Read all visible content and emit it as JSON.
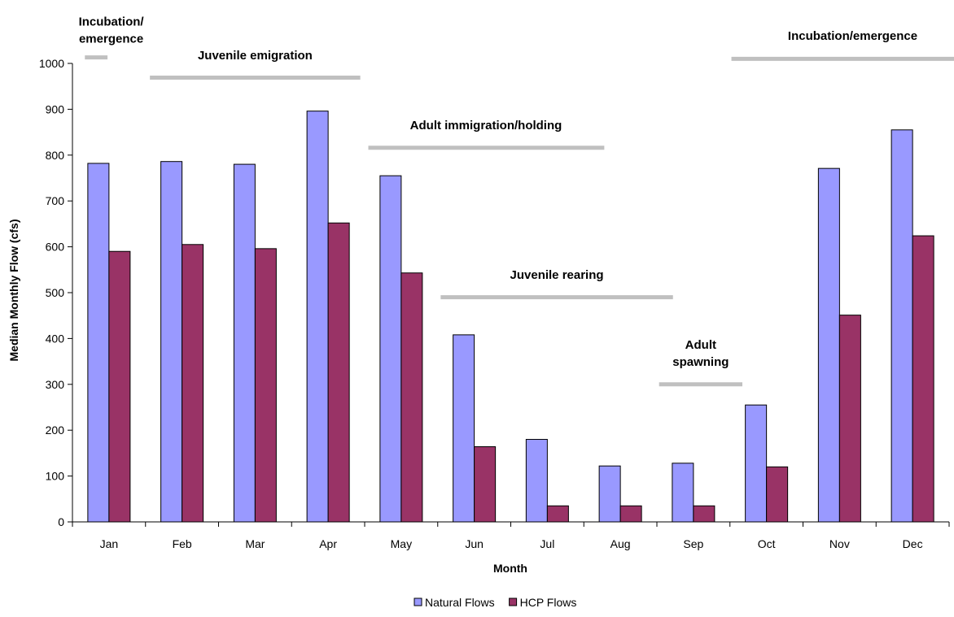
{
  "chart_data": {
    "type": "bar",
    "xlabel": "Month",
    "ylabel": "Median Monthly Flow (cfs)",
    "ylim": [
      0,
      1000
    ],
    "yticks": [
      0,
      100,
      200,
      300,
      400,
      500,
      600,
      700,
      800,
      900,
      1000
    ],
    "categories": [
      "Jan",
      "Feb",
      "Mar",
      "Apr",
      "May",
      "Jun",
      "Jul",
      "Aug",
      "Sep",
      "Oct",
      "Nov",
      "Dec"
    ],
    "series": [
      {
        "name": "Natural Flows",
        "color": "#9999ff",
        "values": [
          782,
          786,
          780,
          896,
          755,
          408,
          180,
          122,
          128,
          255,
          771,
          855
        ]
      },
      {
        "name": "HCP Flows",
        "color": "#993366",
        "values": [
          590,
          605,
          596,
          652,
          543,
          164,
          35,
          35,
          35,
          120,
          451,
          624
        ]
      }
    ],
    "legend_position": "bottom",
    "grid": false,
    "annotations": [
      {
        "lines": [
          "Incubation/",
          "emergence"
        ],
        "color": "#c0c0c0",
        "bar": {
          "from_month": 0.17,
          "to_month": 0.48,
          "value": 1013
        },
        "label_at_month": 0.53,
        "label_value": 1045
      },
      {
        "lines": [
          "Juvenile emigration"
        ],
        "color": "#c0c0c0",
        "bar": {
          "from_month": 1.06,
          "to_month": 3.94,
          "value": 969
        },
        "label_at_month": 2.5,
        "label_value": 1009
      },
      {
        "lines": [
          "Adult immigration/holding"
        ],
        "color": "#c0c0c0",
        "bar": {
          "from_month": 4.05,
          "to_month": 7.28,
          "value": 816
        },
        "label_at_month": 5.66,
        "label_value": 856
      },
      {
        "lines": [
          "Juvenile rearing"
        ],
        "color": "#c0c0c0",
        "bar": {
          "from_month": 5.04,
          "to_month": 8.22,
          "value": 490
        },
        "label_at_month": 6.63,
        "label_value": 530
      },
      {
        "lines": [
          "Adult",
          "spawning"
        ],
        "color": "#c0c0c0",
        "bar": {
          "from_month": 8.03,
          "to_month": 9.17,
          "value": 300
        },
        "label_at_month": 8.6,
        "label_value": 340
      },
      {
        "lines": [
          "Incubation/emergence"
        ],
        "color": "#c0c0c0",
        "bar": {
          "from_month": 9.02,
          "to_month": 12.5,
          "value": 1010
        },
        "label_at_month": 10.68,
        "label_value": 1051
      }
    ]
  }
}
